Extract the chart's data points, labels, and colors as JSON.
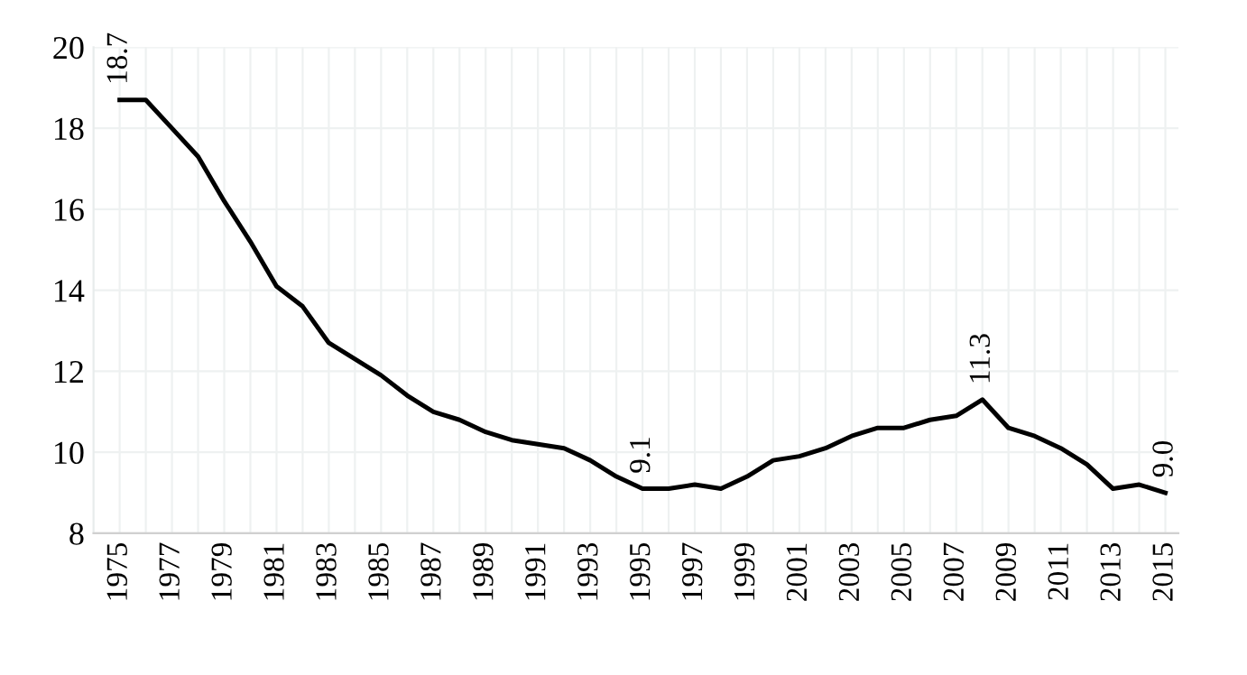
{
  "chart_data": {
    "type": "line",
    "categories": [
      "1975",
      null,
      "1977",
      null,
      "1979",
      null,
      "1981",
      null,
      "1983",
      null,
      "1985",
      null,
      "1987",
      null,
      "1989",
      null,
      "1991",
      null,
      "1993",
      null,
      "1995",
      null,
      "1997",
      null,
      "1999",
      null,
      "2001",
      null,
      "2003",
      null,
      "2005",
      null,
      "2007",
      null,
      "2009",
      null,
      "2011",
      null,
      "2013",
      null,
      "2015"
    ],
    "series": [
      {
        "color": "#000000",
        "values": [
          18.7,
          18.7,
          18.0,
          17.3,
          16.2,
          15.2,
          14.1,
          13.6,
          12.7,
          12.3,
          11.9,
          11.4,
          11.0,
          10.8,
          10.5,
          10.3,
          10.2,
          10.1,
          9.8,
          9.4,
          9.1,
          9.1,
          9.2,
          9.1,
          9.4,
          9.8,
          9.9,
          10.1,
          10.4,
          10.6,
          10.6,
          10.8,
          10.9,
          11.3,
          10.6,
          10.4,
          10.1,
          9.7,
          9.1,
          9.2,
          9.0
        ],
        "value_labels": [
          "18.7",
          null,
          null,
          null,
          null,
          null,
          null,
          null,
          null,
          null,
          null,
          null,
          null,
          null,
          null,
          null,
          null,
          null,
          null,
          null,
          "9.1",
          null,
          null,
          null,
          null,
          null,
          null,
          null,
          null,
          null,
          null,
          null,
          null,
          "11.3",
          null,
          null,
          null,
          null,
          null,
          null,
          "9.0"
        ]
      }
    ],
    "ylim": [
      8,
      20
    ],
    "yticks": [
      8,
      10,
      12,
      14,
      16,
      18,
      20
    ],
    "grid": true,
    "marker": "none",
    "line_style": "solid",
    "legend": false
  }
}
